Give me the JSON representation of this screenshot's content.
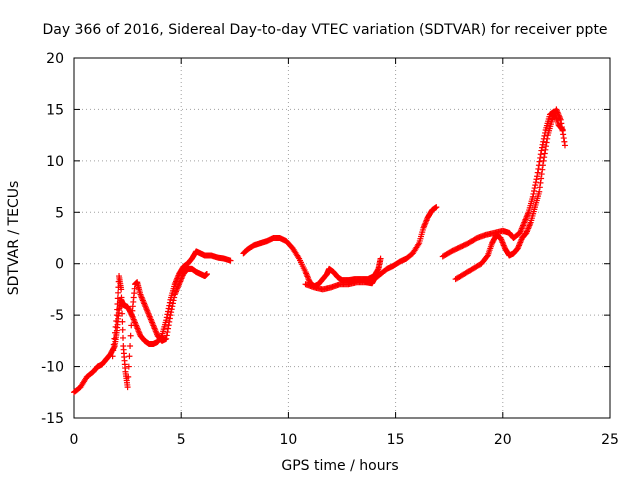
{
  "chart_data": {
    "type": "scatter",
    "title": "Day 366 of 2016, Sidereal Day-to-day VTEC variation (SDTVAR) for receiver ppte",
    "xlabel": "GPS time / hours",
    "ylabel": "SDTVAR / TECUs",
    "xlim": [
      0,
      25
    ],
    "ylim": [
      -15,
      20
    ],
    "xticks": [
      "0",
      "5",
      "10",
      "15",
      "20",
      "25"
    ],
    "yticks": [
      "-15",
      "-10",
      "-5",
      "0",
      "5",
      "10",
      "15",
      "20"
    ],
    "grid": true,
    "marker": "+",
    "color": "#ff0000",
    "series": [
      {
        "points": [
          [
            0.0,
            -12.5
          ],
          [
            0.3,
            -12.0
          ],
          [
            0.6,
            -11.0
          ],
          [
            0.9,
            -10.5
          ],
          [
            1.1,
            -10.0
          ],
          [
            1.3,
            -9.8
          ],
          [
            1.5,
            -9.3
          ],
          [
            1.7,
            -8.8
          ],
          [
            1.9,
            -8.0
          ],
          [
            2.0,
            -6.5
          ],
          [
            2.1,
            -4.5
          ],
          [
            2.2,
            -3.5
          ],
          [
            2.3,
            -4.0
          ],
          [
            2.5,
            -4.2
          ],
          [
            2.7,
            -5.0
          ],
          [
            2.9,
            -6.0
          ],
          [
            3.1,
            -7.0
          ],
          [
            3.3,
            -7.5
          ],
          [
            3.5,
            -7.8
          ],
          [
            3.7,
            -7.8
          ],
          [
            3.9,
            -7.6
          ],
          [
            4.1,
            -7.0
          ],
          [
            4.3,
            -5.5
          ],
          [
            4.5,
            -3.5
          ],
          [
            4.7,
            -2.0
          ],
          [
            4.9,
            -1.0
          ],
          [
            5.1,
            -0.3
          ],
          [
            5.3,
            0.0
          ],
          [
            5.5,
            0.5
          ],
          [
            5.7,
            1.2
          ],
          [
            5.9,
            1.0
          ],
          [
            6.1,
            0.8
          ],
          [
            6.4,
            0.8
          ],
          [
            6.7,
            0.6
          ],
          [
            7.0,
            0.5
          ],
          [
            7.3,
            0.3
          ]
        ]
      },
      {
        "points": [
          [
            1.8,
            -9.0
          ],
          [
            2.0,
            -5.0
          ],
          [
            2.1,
            -1.2
          ],
          [
            2.2,
            -2.5
          ],
          [
            2.3,
            -8.0
          ],
          [
            2.4,
            -10.5
          ],
          [
            2.5,
            -12.0
          ],
          [
            2.7,
            -5.0
          ],
          [
            2.85,
            -2.0
          ],
          [
            2.95,
            -1.8
          ],
          [
            3.1,
            -3.0
          ],
          [
            3.3,
            -4.0
          ],
          [
            3.5,
            -5.0
          ],
          [
            3.7,
            -6.0
          ],
          [
            3.9,
            -7.0
          ],
          [
            4.1,
            -7.5
          ],
          [
            4.3,
            -7.3
          ],
          [
            4.5,
            -5.0
          ],
          [
            4.7,
            -3.0
          ],
          [
            4.9,
            -2.0
          ],
          [
            5.1,
            -1.0
          ],
          [
            5.3,
            -0.5
          ],
          [
            5.5,
            -0.5
          ],
          [
            5.7,
            -0.8
          ],
          [
            5.9,
            -1.0
          ],
          [
            6.1,
            -1.2
          ],
          [
            6.2,
            -1.0
          ]
        ]
      },
      {
        "points": [
          [
            7.9,
            1.0
          ],
          [
            8.1,
            1.4
          ],
          [
            8.4,
            1.8
          ],
          [
            8.7,
            2.0
          ],
          [
            9.0,
            2.2
          ],
          [
            9.3,
            2.5
          ],
          [
            9.6,
            2.5
          ],
          [
            9.9,
            2.2
          ],
          [
            10.2,
            1.5
          ],
          [
            10.5,
            0.5
          ],
          [
            10.8,
            -0.8
          ],
          [
            11.0,
            -1.8
          ],
          [
            11.2,
            -2.2
          ],
          [
            11.4,
            -2.0
          ],
          [
            11.6,
            -1.5
          ],
          [
            11.8,
            -1.0
          ],
          [
            11.9,
            -0.5
          ],
          [
            12.1,
            -0.8
          ],
          [
            12.3,
            -1.3
          ],
          [
            12.5,
            -1.6
          ],
          [
            12.8,
            -1.6
          ],
          [
            13.1,
            -1.5
          ],
          [
            13.4,
            -1.5
          ],
          [
            13.7,
            -1.5
          ],
          [
            14.0,
            -1.2
          ],
          [
            14.2,
            -0.5
          ],
          [
            14.3,
            0.5
          ]
        ]
      },
      {
        "points": [
          [
            10.8,
            -2.0
          ],
          [
            11.2,
            -2.3
          ],
          [
            11.6,
            -2.5
          ],
          [
            12.0,
            -2.3
          ],
          [
            12.4,
            -2.0
          ],
          [
            12.8,
            -2.0
          ],
          [
            13.2,
            -1.8
          ],
          [
            13.6,
            -1.8
          ],
          [
            13.9,
            -1.9
          ],
          [
            14.0,
            -1.5
          ],
          [
            14.3,
            -1.0
          ],
          [
            14.6,
            -0.5
          ],
          [
            14.9,
            -0.2
          ],
          [
            15.2,
            0.2
          ],
          [
            15.5,
            0.5
          ],
          [
            15.8,
            1.0
          ],
          [
            16.1,
            2.0
          ],
          [
            16.3,
            3.5
          ],
          [
            16.5,
            4.5
          ],
          [
            16.7,
            5.2
          ],
          [
            16.9,
            5.5
          ]
        ]
      },
      {
        "points": [
          [
            17.2,
            0.7
          ],
          [
            17.6,
            1.2
          ],
          [
            18.0,
            1.6
          ],
          [
            18.4,
            2.0
          ],
          [
            18.8,
            2.5
          ],
          [
            19.2,
            2.8
          ],
          [
            19.6,
            3.0
          ],
          [
            20.0,
            3.2
          ],
          [
            20.3,
            3.0
          ],
          [
            20.5,
            2.5
          ],
          [
            20.8,
            3.0
          ],
          [
            21.0,
            4.0
          ],
          [
            21.2,
            5.0
          ],
          [
            21.4,
            6.5
          ],
          [
            21.6,
            8.5
          ],
          [
            21.8,
            11.0
          ],
          [
            22.0,
            13.0
          ],
          [
            22.2,
            14.5
          ],
          [
            22.4,
            14.8
          ],
          [
            22.6,
            13.5
          ],
          [
            22.8,
            13.0
          ]
        ]
      },
      {
        "points": [
          [
            17.8,
            -1.5
          ],
          [
            18.2,
            -1.0
          ],
          [
            18.6,
            -0.5
          ],
          [
            19.0,
            0.0
          ],
          [
            19.3,
            0.8
          ],
          [
            19.5,
            2.0
          ],
          [
            19.7,
            2.8
          ],
          [
            19.9,
            2.5
          ],
          [
            20.1,
            1.5
          ],
          [
            20.3,
            0.8
          ],
          [
            20.5,
            1.0
          ],
          [
            20.7,
            1.5
          ],
          [
            20.9,
            2.5
          ],
          [
            21.1,
            3.0
          ],
          [
            21.3,
            4.0
          ],
          [
            21.5,
            5.5
          ],
          [
            21.7,
            7.0
          ],
          [
            21.9,
            10.0
          ],
          [
            22.1,
            12.5
          ],
          [
            22.3,
            14.0
          ],
          [
            22.5,
            15.0
          ],
          [
            22.7,
            14.0
          ],
          [
            22.9,
            11.5
          ]
        ]
      }
    ]
  }
}
